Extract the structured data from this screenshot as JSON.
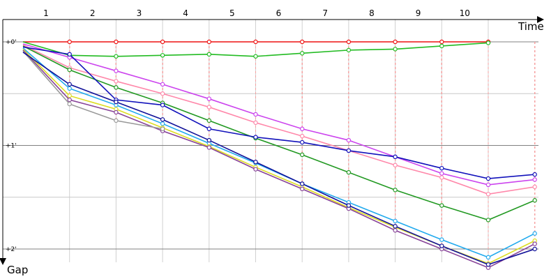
{
  "chart_data": {
    "type": "line",
    "xlabel": "Time",
    "ylabel": "Gap",
    "laps": [
      "1",
      "2",
      "3",
      "4",
      "5",
      "6",
      "7",
      "8",
      "9",
      "10"
    ],
    "yticks": [
      {
        "value": 0,
        "label": "+0'"
      },
      {
        "value": 1,
        "label": "+1'"
      },
      {
        "value": 2,
        "label": "+2'"
      }
    ],
    "ylim": [
      0,
      2
    ],
    "grid": true,
    "colors": {
      "grid_major": "#808080",
      "grid_minor": "#c8c8c8",
      "grid_vertical": "#d0d0d0",
      "connector": "#f5a0a0",
      "axis": "#000000"
    },
    "series": [
      {
        "color": "#ee1111",
        "points": [
          [
            0,
            0
          ],
          [
            1,
            0
          ],
          [
            2,
            0
          ],
          [
            3,
            0
          ],
          [
            4,
            0
          ],
          [
            5,
            0
          ],
          [
            6,
            0
          ],
          [
            7,
            0
          ],
          [
            8,
            0
          ],
          [
            9,
            0
          ],
          [
            10,
            0
          ]
        ]
      },
      {
        "color": "#22bb22",
        "points": [
          [
            0,
            0
          ],
          [
            1,
            0.13
          ],
          [
            2,
            0.14
          ],
          [
            3,
            0.13
          ],
          [
            4,
            0.12
          ],
          [
            5,
            0.14
          ],
          [
            6,
            0.11
          ],
          [
            7,
            0.08
          ],
          [
            8,
            0.07
          ],
          [
            9,
            0.04
          ],
          [
            10,
            0.01
          ]
        ]
      },
      {
        "color": "#cc44ee",
        "points": [
          [
            0,
            0.02
          ],
          [
            1,
            0.15
          ],
          [
            2,
            0.28
          ],
          [
            3,
            0.41
          ],
          [
            4,
            0.55
          ],
          [
            5,
            0.7
          ],
          [
            6,
            0.84
          ],
          [
            7,
            0.95
          ],
          [
            8,
            1.11
          ],
          [
            9,
            1.27
          ],
          [
            10,
            1.38
          ],
          [
            11,
            1.33
          ]
        ]
      },
      {
        "color": "#ff88aa",
        "points": [
          [
            0,
            0.03
          ],
          [
            1,
            0.25
          ],
          [
            2,
            0.38
          ],
          [
            3,
            0.5
          ],
          [
            4,
            0.63
          ],
          [
            5,
            0.78
          ],
          [
            6,
            0.91
          ],
          [
            7,
            1.05
          ],
          [
            8,
            1.19
          ],
          [
            9,
            1.31
          ],
          [
            10,
            1.47
          ],
          [
            11,
            1.4
          ]
        ]
      },
      {
        "color": "#229922",
        "points": [
          [
            0,
            0.04
          ],
          [
            1,
            0.27
          ],
          [
            2,
            0.44
          ],
          [
            3,
            0.59
          ],
          [
            4,
            0.76
          ],
          [
            5,
            0.93
          ],
          [
            6,
            1.09
          ],
          [
            7,
            1.26
          ],
          [
            8,
            1.43
          ],
          [
            9,
            1.58
          ],
          [
            10,
            1.72
          ],
          [
            11,
            1.53
          ]
        ]
      },
      {
        "color": "#1111bb",
        "points": [
          [
            0,
            0.05
          ],
          [
            1,
            0.12
          ],
          [
            2,
            0.56
          ],
          [
            3,
            0.61
          ],
          [
            4,
            0.84
          ],
          [
            5,
            0.92
          ],
          [
            6,
            0.97
          ],
          [
            7,
            1.05
          ],
          [
            8,
            1.11
          ],
          [
            9,
            1.22
          ],
          [
            10,
            1.32
          ],
          [
            11,
            1.28
          ]
        ]
      },
      {
        "color": "#22aaee",
        "points": [
          [
            0,
            0.06
          ],
          [
            1,
            0.45
          ],
          [
            2,
            0.61
          ],
          [
            3,
            0.79
          ],
          [
            4,
            0.98
          ],
          [
            5,
            1.17
          ],
          [
            6,
            1.37
          ],
          [
            7,
            1.55
          ],
          [
            8,
            1.73
          ],
          [
            9,
            1.91
          ],
          [
            10,
            2.08
          ],
          [
            11,
            1.85
          ]
        ]
      },
      {
        "color": "#dddd22",
        "points": [
          [
            0,
            0.07
          ],
          [
            1,
            0.52
          ],
          [
            2,
            0.65
          ],
          [
            3,
            0.83
          ],
          [
            4,
            1.01
          ],
          [
            5,
            1.21
          ],
          [
            6,
            1.4
          ],
          [
            7,
            1.6
          ],
          [
            8,
            1.79
          ],
          [
            9,
            1.97
          ],
          [
            10,
            2.14
          ],
          [
            11,
            1.92
          ]
        ]
      },
      {
        "color": "#884499",
        "points": [
          [
            0,
            0.08
          ],
          [
            1,
            0.56
          ],
          [
            2,
            0.68
          ],
          [
            3,
            0.86
          ],
          [
            4,
            1.02
          ],
          [
            5,
            1.23
          ],
          [
            6,
            1.42
          ],
          [
            7,
            1.61
          ],
          [
            8,
            1.82
          ],
          [
            9,
            2.0
          ],
          [
            10,
            2.18
          ],
          [
            11,
            1.95
          ]
        ]
      },
      {
        "color": "#999999",
        "points": [
          [
            0,
            0.09
          ],
          [
            1,
            0.6
          ],
          [
            2,
            0.76
          ],
          [
            3,
            0.84
          ]
        ]
      },
      {
        "color": "#111199",
        "points": [
          [
            0,
            0.1
          ],
          [
            1,
            0.41
          ],
          [
            2,
            0.58
          ],
          [
            3,
            0.75
          ],
          [
            4,
            0.95
          ],
          [
            5,
            1.16
          ],
          [
            6,
            1.37
          ],
          [
            7,
            1.58
          ],
          [
            8,
            1.78
          ],
          [
            9,
            1.97
          ],
          [
            10,
            2.15
          ],
          [
            11,
            2.0
          ]
        ]
      }
    ]
  }
}
